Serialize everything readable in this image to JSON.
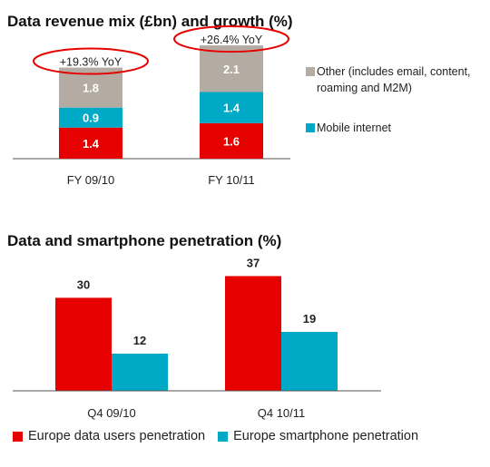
{
  "chart_data": [
    {
      "type": "bar",
      "stacked": true,
      "title": "Data revenue mix (£bn) and growth (%)",
      "categories": [
        "FY 09/10",
        "FY 10/11"
      ],
      "series": [
        {
          "name": "Mobile internet",
          "values": [
            0.9,
            1.4
          ],
          "color": "#00a9c6"
        },
        {
          "name": "Other (includes email, content, roaming and M2M)",
          "values": [
            1.8,
            2.1
          ],
          "color": "#b4aba3"
        }
      ],
      "base_values": [
        1.4,
        1.6
      ],
      "base_color": "#e60000",
      "annotations": [
        "+19.3% YoY",
        "+26.4% YoY"
      ],
      "annotation_color": "#e60000",
      "legend_placement": "right"
    },
    {
      "type": "bar",
      "title": "Data and smartphone penetration (%)",
      "categories": [
        "Q4 09/10",
        "Q4 10/11"
      ],
      "series": [
        {
          "name": "Europe data users penetration",
          "values": [
            30,
            37
          ],
          "color": "#e60000"
        },
        {
          "name": "Europe smartphone penetration",
          "values": [
            12,
            19
          ],
          "color": "#00a9c6"
        }
      ],
      "legend_placement": "bottom"
    }
  ]
}
